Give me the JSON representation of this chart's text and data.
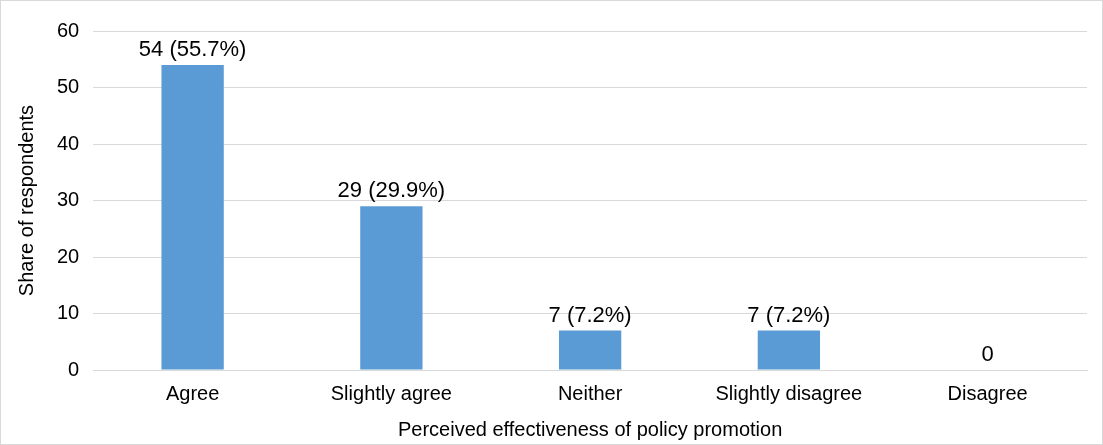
{
  "chart_data": {
    "type": "bar",
    "xlabel": "Perceived effectiveness of policy promotion",
    "ylabel": "Share of respondents",
    "categories": [
      "Agree",
      "Slightly agree",
      "Neither",
      "Slightly disagree",
      "Disagree"
    ],
    "values": [
      54,
      29,
      7,
      7,
      0
    ],
    "color": "#5b9bd5",
    "value_labels": [
      "54 (55.7%)",
      "29 (29.9%)",
      "7 (7.2%)",
      "7 (7.2%)",
      "0"
    ],
    "ylim": [
      0,
      60
    ],
    "yticks": [
      0,
      10,
      20,
      30,
      40,
      50,
      60
    ],
    "grid": "y",
    "legend": false
  }
}
